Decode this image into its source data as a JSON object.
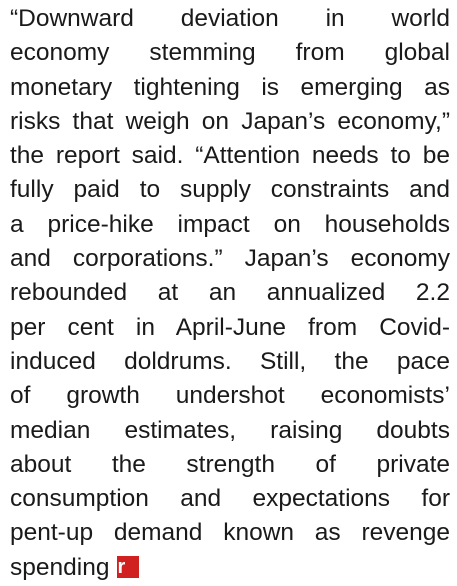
{
  "article": {
    "lines": [
      "“Downward deviation in world",
      "economy stemming from global",
      "monetary tightening is emerging as",
      "risks that weigh on Japan’s economy,”",
      "the report said. “Attention needs to be",
      "fully paid to supply constraints and",
      "a price-hike impact on households",
      "and corporations.” Japan’s economy",
      "rebounded at an annualized 2.2",
      "per cent in April-June from Covid-",
      "induced doldrums. Still, the pace",
      "of growth undershot economists’",
      "median estimates, raising doubts",
      "about the strength of private",
      "consumption and expectations for",
      "pent-up demand known as revenge",
      "spending"
    ],
    "end_mark": "r"
  }
}
